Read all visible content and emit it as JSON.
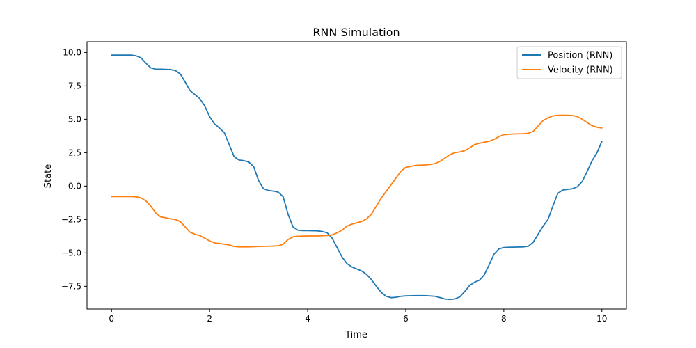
{
  "chart_data": {
    "type": "line",
    "title": "RNN Simulation",
    "xlabel": "Time",
    "ylabel": "State",
    "xlim": [
      -0.5,
      10.5
    ],
    "ylim": [
      -9.2,
      10.8
    ],
    "xticks": [
      0,
      2,
      4,
      6,
      8,
      10
    ],
    "xtick_labels": [
      "0",
      "2",
      "4",
      "6",
      "8",
      "10"
    ],
    "yticks": [
      -7.5,
      -5.0,
      -2.5,
      0.0,
      2.5,
      5.0,
      7.5,
      10.0
    ],
    "ytick_labels": [
      "−7.5",
      "−5.0",
      "−2.5",
      "0.0",
      "2.5",
      "5.0",
      "7.5",
      "10.0"
    ],
    "grid": false,
    "legend_position": "top-right",
    "series": [
      {
        "name": "Position (RNN)",
        "color": "#1f77b4",
        "x": [
          0.0,
          0.2,
          0.4,
          0.5,
          0.6,
          0.7,
          0.8,
          0.9,
          1.0,
          1.2,
          1.3,
          1.4,
          1.5,
          1.6,
          1.7,
          1.8,
          1.9,
          2.0,
          2.1,
          2.2,
          2.3,
          2.4,
          2.5,
          2.6,
          2.7,
          2.8,
          2.9,
          3.0,
          3.1,
          3.2,
          3.3,
          3.4,
          3.5,
          3.6,
          3.7,
          3.8,
          3.9,
          4.0,
          4.2,
          4.3,
          4.4,
          4.5,
          4.6,
          4.7,
          4.8,
          4.9,
          5.0,
          5.1,
          5.2,
          5.3,
          5.4,
          5.5,
          5.6,
          5.7,
          5.8,
          5.9,
          6.0,
          6.2,
          6.4,
          6.6,
          6.7,
          6.8,
          6.9,
          7.0,
          7.1,
          7.2,
          7.3,
          7.4,
          7.5,
          7.6,
          7.7,
          7.8,
          7.9,
          8.0,
          8.1,
          8.2,
          8.4,
          8.5,
          8.6,
          8.7,
          8.8,
          8.9,
          9.0,
          9.1,
          9.2,
          9.3,
          9.4,
          9.5,
          9.6,
          9.7,
          9.8,
          9.9,
          10.0
        ],
        "y": [
          9.8,
          9.8,
          9.8,
          9.75,
          9.6,
          9.2,
          8.85,
          8.75,
          8.75,
          8.72,
          8.65,
          8.4,
          7.8,
          7.15,
          6.85,
          6.55,
          6.0,
          5.2,
          4.65,
          4.35,
          4.0,
          3.1,
          2.2,
          1.95,
          1.9,
          1.8,
          1.45,
          0.4,
          -0.2,
          -0.33,
          -0.38,
          -0.45,
          -0.8,
          -2.1,
          -3.05,
          -3.3,
          -3.33,
          -3.33,
          -3.35,
          -3.4,
          -3.5,
          -3.9,
          -4.6,
          -5.3,
          -5.8,
          -6.05,
          -6.2,
          -6.35,
          -6.6,
          -7.0,
          -7.5,
          -7.95,
          -8.25,
          -8.35,
          -8.32,
          -8.25,
          -8.22,
          -8.2,
          -8.2,
          -8.25,
          -8.35,
          -8.45,
          -8.48,
          -8.45,
          -8.3,
          -7.9,
          -7.45,
          -7.2,
          -7.05,
          -6.65,
          -5.9,
          -5.1,
          -4.7,
          -4.6,
          -4.58,
          -4.57,
          -4.55,
          -4.5,
          -4.2,
          -3.6,
          -3.0,
          -2.5,
          -1.5,
          -0.55,
          -0.3,
          -0.25,
          -0.2,
          -0.05,
          0.35,
          1.1,
          1.9,
          2.5,
          3.35
        ]
      },
      {
        "name": "Velocity (RNN)",
        "color": "#ff7f0e",
        "x": [
          0.0,
          0.2,
          0.4,
          0.5,
          0.6,
          0.7,
          0.8,
          0.9,
          1.0,
          1.2,
          1.3,
          1.4,
          1.5,
          1.6,
          1.7,
          1.8,
          1.9,
          2.0,
          2.1,
          2.2,
          2.3,
          2.4,
          2.5,
          2.6,
          2.8,
          3.0,
          3.2,
          3.4,
          3.5,
          3.6,
          3.7,
          3.8,
          4.0,
          4.2,
          4.4,
          4.5,
          4.6,
          4.7,
          4.8,
          4.9,
          5.0,
          5.1,
          5.2,
          5.3,
          5.4,
          5.5,
          5.6,
          5.7,
          5.8,
          5.9,
          6.0,
          6.2,
          6.4,
          6.5,
          6.6,
          6.7,
          6.8,
          6.9,
          7.0,
          7.1,
          7.2,
          7.3,
          7.4,
          7.5,
          7.6,
          7.7,
          7.8,
          7.9,
          8.0,
          8.2,
          8.4,
          8.5,
          8.6,
          8.7,
          8.8,
          8.9,
          9.0,
          9.1,
          9.2,
          9.3,
          9.4,
          9.5,
          9.6,
          9.7,
          9.8,
          9.9,
          10.0
        ],
        "y": [
          -0.78,
          -0.78,
          -0.78,
          -0.8,
          -0.88,
          -1.1,
          -1.5,
          -2.0,
          -2.3,
          -2.45,
          -2.5,
          -2.65,
          -3.05,
          -3.45,
          -3.6,
          -3.7,
          -3.9,
          -4.1,
          -4.25,
          -4.3,
          -4.35,
          -4.4,
          -4.52,
          -4.55,
          -4.55,
          -4.52,
          -4.5,
          -4.47,
          -4.35,
          -4.0,
          -3.8,
          -3.75,
          -3.73,
          -3.73,
          -3.7,
          -3.65,
          -3.5,
          -3.3,
          -3.0,
          -2.85,
          -2.75,
          -2.65,
          -2.45,
          -2.1,
          -1.5,
          -0.9,
          -0.4,
          0.1,
          0.6,
          1.1,
          1.4,
          1.55,
          1.58,
          1.62,
          1.68,
          1.85,
          2.1,
          2.35,
          2.5,
          2.55,
          2.65,
          2.85,
          3.1,
          3.2,
          3.28,
          3.35,
          3.5,
          3.7,
          3.85,
          3.9,
          3.92,
          3.95,
          4.1,
          4.5,
          4.9,
          5.1,
          5.25,
          5.3,
          5.3,
          5.3,
          5.28,
          5.2,
          5.0,
          4.75,
          4.52,
          4.4,
          4.35
        ]
      }
    ]
  }
}
